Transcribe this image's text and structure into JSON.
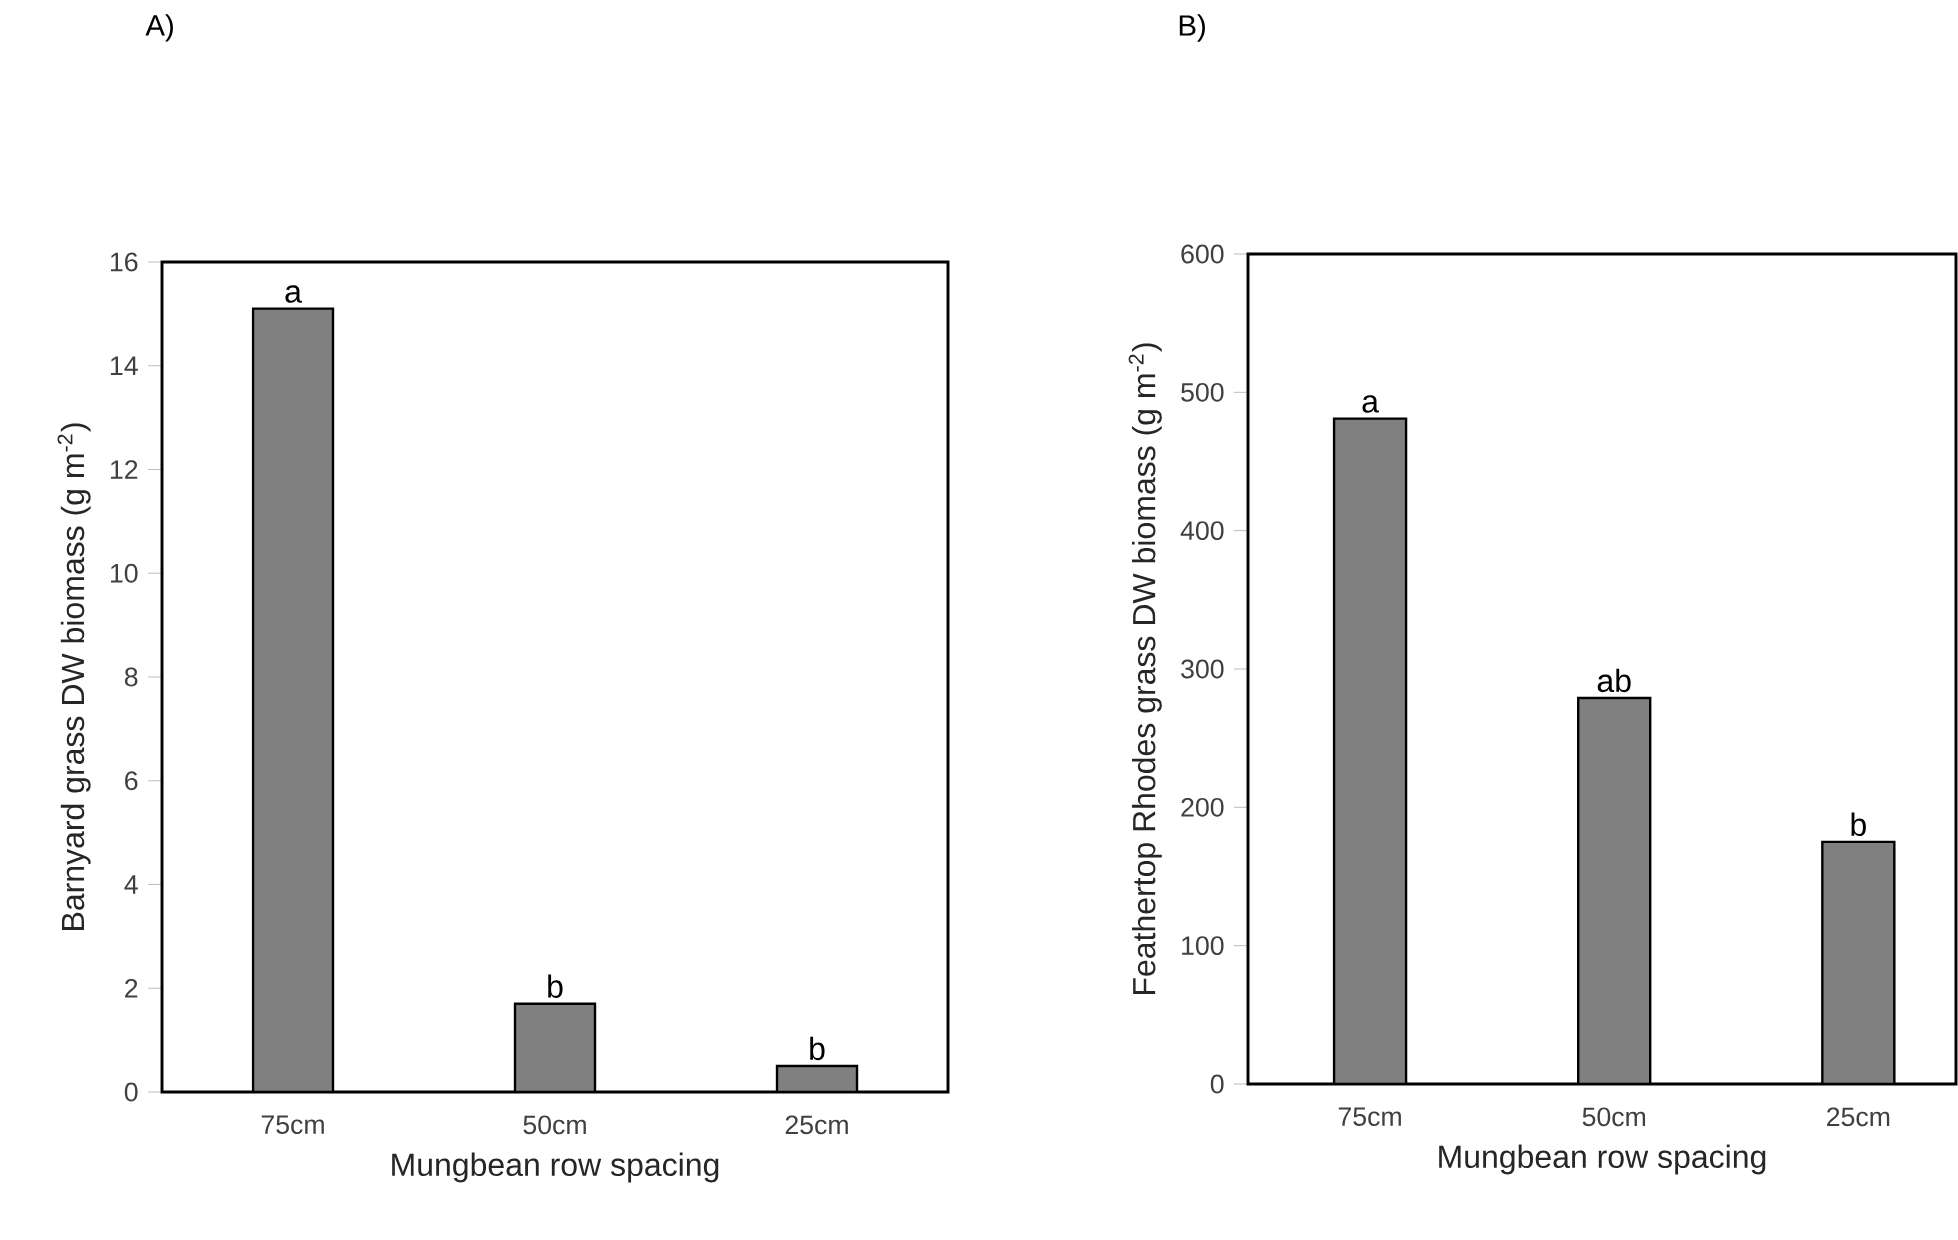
{
  "chart_data": [
    {
      "type": "bar",
      "title": "A)",
      "xlabel": "Mungbean row spacing",
      "ylabel": "Barnyard grass DW biomass (g m$^{-2}$)",
      "categories": [
        "75cm",
        "50cm",
        "25cm"
      ],
      "values": [
        15.1,
        1.7,
        0.5
      ],
      "color": "#808080",
      "ylim": [
        0,
        16
      ],
      "yticks": [
        0,
        2,
        4,
        6,
        8,
        10,
        12,
        14,
        16
      ],
      "grid": false,
      "annotations": [
        "a",
        "b",
        "b"
      ]
    },
    {
      "type": "bar",
      "title": "B)",
      "xlabel": "Mungbean row spacing",
      "ylabel": "Feathertop Rhodes grass DW biomass (g m$^{-2}$)",
      "categories": [
        "75cm",
        "50cm",
        "25cm"
      ],
      "values": [
        481,
        279,
        175
      ],
      "color": "#808080",
      "ylim": [
        0,
        600
      ],
      "yticks": [
        0,
        100,
        200,
        300,
        400,
        500,
        600
      ],
      "grid": false,
      "annotations": [
        "a",
        "ab",
        "b"
      ]
    }
  ]
}
